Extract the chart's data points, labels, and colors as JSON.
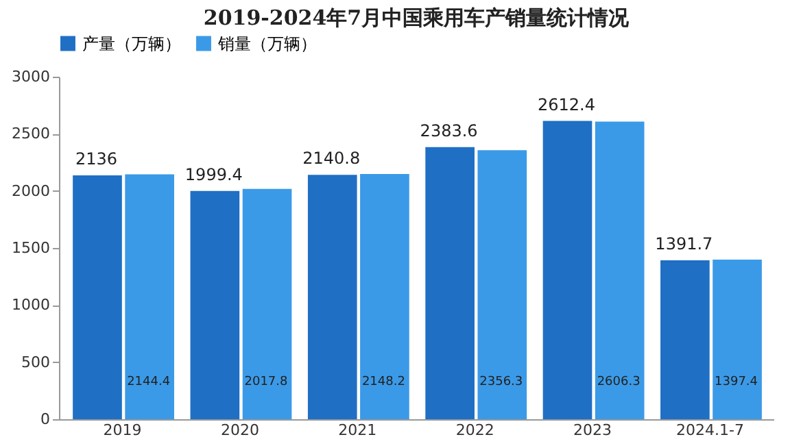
{
  "chart_data": {
    "type": "bar",
    "title": "2019-2024年7月中国乘用车产销量统计情况",
    "categories": [
      "2019",
      "2020",
      "2021",
      "2022",
      "2023",
      "2024.1-7"
    ],
    "series": [
      {
        "name": "产量（万辆）",
        "color": "#1f6fc5",
        "values": [
          2136,
          1999.4,
          2140.8,
          2383.6,
          2612.4,
          1391.7
        ]
      },
      {
        "name": "销量（万辆）",
        "color": "#3b9ae8",
        "values": [
          2144.4,
          2017.8,
          2148.2,
          2356.3,
          2606.3,
          1397.4
        ]
      }
    ],
    "ylim": [
      0,
      3000
    ],
    "yticks": [
      0,
      500,
      1000,
      1500,
      2000,
      2500,
      3000
    ],
    "grid": false,
    "legend": "top",
    "data_labels": true
  }
}
